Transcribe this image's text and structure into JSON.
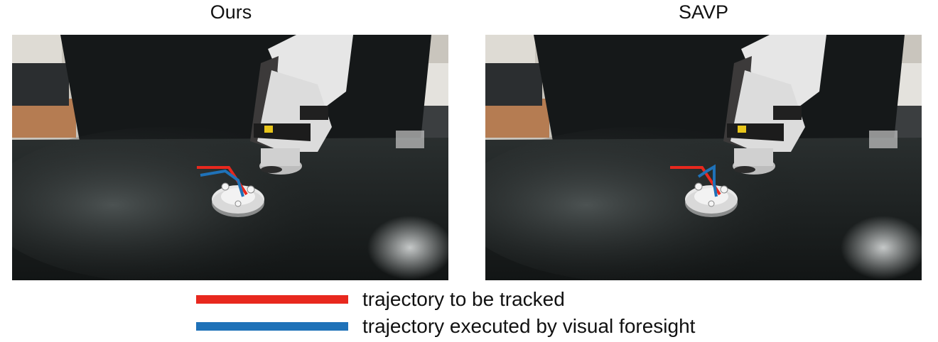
{
  "panels": [
    {
      "title": "Ours"
    },
    {
      "title": "SAVP"
    }
  ],
  "legend": [
    {
      "label": "trajectory to be tracked",
      "color": "#e8281e"
    },
    {
      "label": "trajectory executed by visual foresight",
      "color": "#1f72b8"
    }
  ]
}
